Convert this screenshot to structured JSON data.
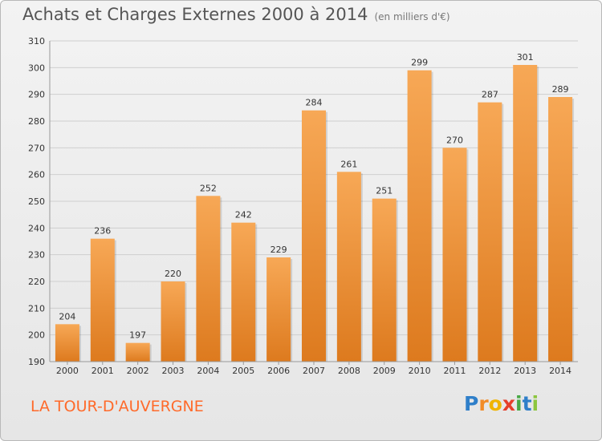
{
  "header": {
    "title": "Achats et Charges Externes 2000 à 2014",
    "unit": "(en milliers d'€)"
  },
  "footer": {
    "place": "LA TOUR-D'AUVERGNE"
  },
  "logo": {
    "letters": [
      "P",
      "r",
      "o",
      "x",
      "i",
      "t",
      "i"
    ],
    "colors": [
      "#2f7fc9",
      "#f28c28",
      "#f0b400",
      "#e53f2b",
      "#48a845",
      "#2f7fc9",
      "#8cc63e"
    ]
  },
  "colors": {
    "bar_top": "#f7a856",
    "bar_bottom": "#dd7a1e",
    "grid": "#cfcfcf",
    "axis_text": "#333333"
  },
  "chart_data": {
    "type": "bar",
    "categories": [
      "2000",
      "2001",
      "2002",
      "2003",
      "2004",
      "2005",
      "2006",
      "2007",
      "2008",
      "2009",
      "2010",
      "2011",
      "2012",
      "2013",
      "2014"
    ],
    "values": [
      204,
      236,
      197,
      220,
      252,
      242,
      229,
      284,
      261,
      251,
      299,
      270,
      287,
      301,
      289
    ],
    "ylim": [
      190,
      310
    ],
    "yticks": [
      190,
      200,
      210,
      220,
      230,
      240,
      250,
      260,
      270,
      280,
      290,
      300,
      310
    ],
    "grid": true
  }
}
